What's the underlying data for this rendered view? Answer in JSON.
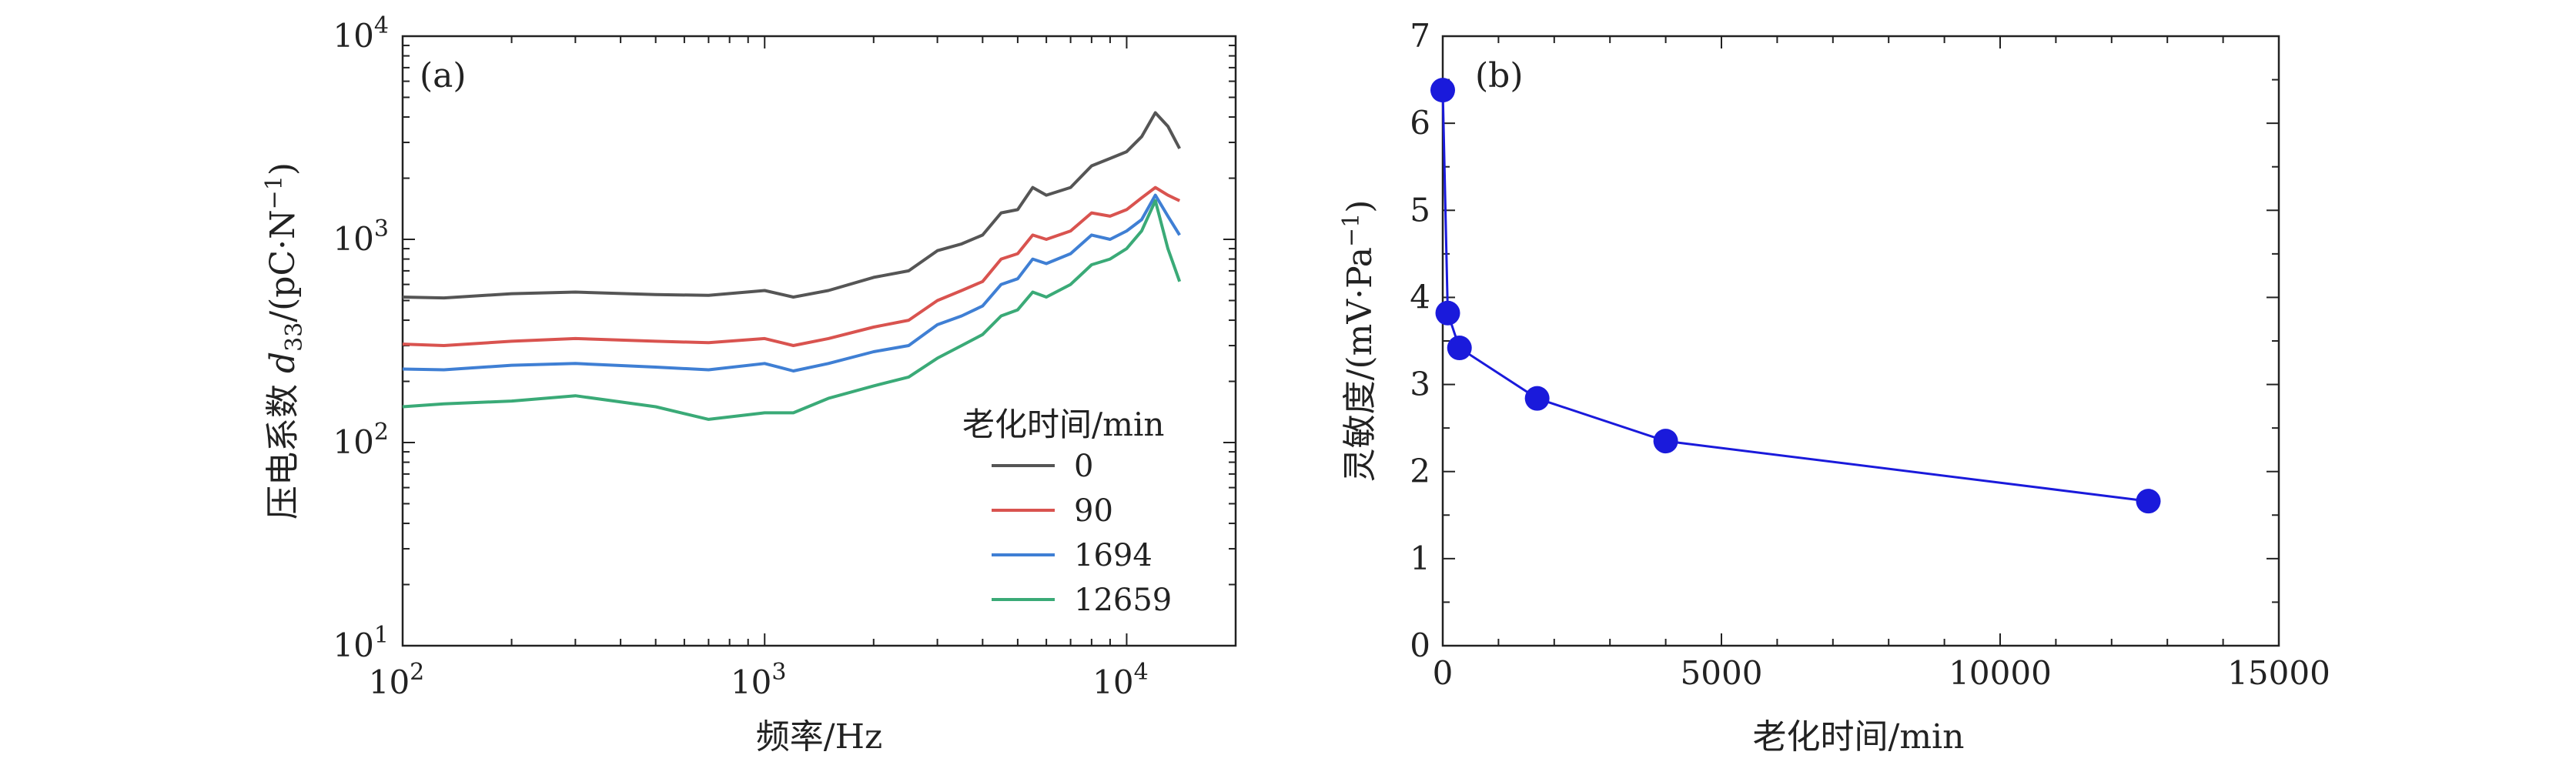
{
  "chart_data": [
    {
      "panel": "(a)",
      "type": "line",
      "xscale": "log",
      "yscale": "log",
      "xlabel": "频率/Hz",
      "ylabel": "压电系数 d33/(pC·N−1)",
      "ylabel_parts": {
        "pre": "压电系数 ",
        "sym": "d",
        "sub": "33",
        "mid": "/(pC·N",
        "sup": "−1",
        "post": ")"
      },
      "xlim": [
        100,
        20000
      ],
      "ylim": [
        10,
        10000
      ],
      "x_ticks": [
        {
          "value": 100,
          "base": "10",
          "exp": "2"
        },
        {
          "value": 1000,
          "base": "10",
          "exp": "3"
        },
        {
          "value": 10000,
          "base": "10",
          "exp": "4"
        }
      ],
      "y_ticks": [
        {
          "value": 10,
          "base": "10",
          "exp": "1"
        },
        {
          "value": 100,
          "base": "10",
          "exp": "2"
        },
        {
          "value": 1000,
          "base": "10",
          "exp": "3"
        },
        {
          "value": 10000,
          "base": "10",
          "exp": "4"
        }
      ],
      "legend": {
        "title": "老化时间/min",
        "placement": "lower-right"
      },
      "series": [
        {
          "name": "0",
          "color": "#555555",
          "x": [
            100,
            130,
            200,
            300,
            500,
            700,
            1000,
            1200,
            1500,
            2000,
            2500,
            3000,
            3500,
            4000,
            4500,
            5000,
            5500,
            6000,
            7000,
            8000,
            9000,
            10000,
            11000,
            12000,
            13000,
            14000
          ],
          "y": [
            520,
            515,
            540,
            550,
            535,
            530,
            560,
            520,
            560,
            650,
            700,
            880,
            950,
            1050,
            1350,
            1400,
            1800,
            1650,
            1800,
            2300,
            2500,
            2700,
            3200,
            4200,
            3600,
            2800
          ]
        },
        {
          "name": "90",
          "color": "#d9534f",
          "x": [
            100,
            130,
            200,
            300,
            500,
            700,
            1000,
            1200,
            1500,
            2000,
            2500,
            3000,
            3500,
            4000,
            4500,
            5000,
            5500,
            6000,
            7000,
            8000,
            9000,
            10000,
            11000,
            12000,
            13000,
            14000
          ],
          "y": [
            305,
            300,
            315,
            325,
            315,
            310,
            325,
            300,
            325,
            370,
            400,
            500,
            560,
            620,
            800,
            850,
            1050,
            1000,
            1100,
            1350,
            1300,
            1400,
            1600,
            1800,
            1650,
            1550
          ]
        },
        {
          "name": "1694",
          "color": "#3f7fd4",
          "x": [
            100,
            130,
            200,
            300,
            500,
            700,
            1000,
            1200,
            1500,
            2000,
            2500,
            3000,
            3500,
            4000,
            4500,
            5000,
            5500,
            6000,
            7000,
            8000,
            9000,
            10000,
            11000,
            12000,
            13000,
            14000
          ],
          "y": [
            230,
            228,
            240,
            245,
            235,
            228,
            245,
            225,
            245,
            280,
            300,
            380,
            420,
            470,
            600,
            640,
            800,
            760,
            850,
            1050,
            1000,
            1100,
            1250,
            1650,
            1300,
            1050
          ]
        },
        {
          "name": "12659",
          "color": "#3aaa77",
          "x": [
            100,
            130,
            200,
            300,
            500,
            700,
            1000,
            1200,
            1500,
            2000,
            2500,
            3000,
            3500,
            4000,
            4500,
            5000,
            5500,
            6000,
            7000,
            8000,
            9000,
            10000,
            11000,
            12000,
            13000,
            14000
          ],
          "y": [
            150,
            155,
            160,
            170,
            150,
            130,
            140,
            140,
            165,
            190,
            210,
            260,
            300,
            340,
            420,
            450,
            550,
            520,
            600,
            750,
            800,
            900,
            1100,
            1550,
            900,
            620
          ]
        }
      ]
    },
    {
      "panel": "(b)",
      "type": "line",
      "marker": "circle",
      "color": "#1a1adb",
      "xlabel": "老化时间/min",
      "ylabel": "灵敏度/(mV·Pa−1)",
      "ylabel_parts": {
        "pre": "灵敏度/(mV·Pa",
        "sup": "−1",
        "post": ")"
      },
      "xlim": [
        0,
        15000
      ],
      "ylim": [
        0,
        7
      ],
      "x_ticks": [
        "0",
        "5000",
        "10000",
        "15000"
      ],
      "y_ticks": [
        "0",
        "1",
        "2",
        "3",
        "4",
        "5",
        "6",
        "7"
      ],
      "x": [
        0,
        90,
        300,
        1694,
        4000,
        12659
      ],
      "y": [
        6.38,
        3.82,
        3.42,
        2.84,
        2.35,
        1.66
      ]
    }
  ]
}
